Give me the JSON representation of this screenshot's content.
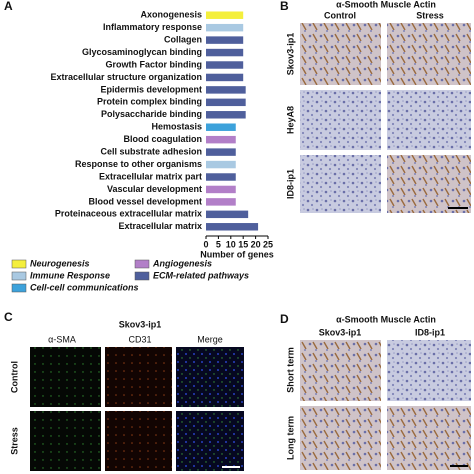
{
  "chart_data": {
    "type": "hbar",
    "panel_label": "A",
    "xlabel": "Number of genes",
    "categories": [
      "Axonogenesis",
      "Inflammatory response",
      "Collagen",
      "Glycosaminoglycan binding",
      "Growth Factor binding",
      "Extracellular structure organization",
      "Epidermis development",
      "Protein complex binding",
      "Polysaccharide binding",
      "Hemostasis",
      "Blood coagulation",
      "Cell substrate adhesion",
      "Response to other organisms",
      "Extracellular matrix part",
      "Vascular development",
      "Blood vessel development",
      "Proteinaceous extracellular matrix",
      "Extracellular matrix"
    ],
    "series": [
      {
        "name": "Neurogenesis",
        "color": "#f4ef3c",
        "values": [
          15,
          null,
          null,
          null,
          null,
          null,
          null,
          null,
          null,
          null,
          null,
          null,
          null,
          null,
          null,
          null,
          null,
          null
        ]
      },
      {
        "name": "Angiogenesis",
        "color": "#b27fc8",
        "values": [
          null,
          null,
          null,
          null,
          null,
          null,
          null,
          null,
          null,
          null,
          12,
          null,
          null,
          null,
          12,
          12,
          null,
          null
        ]
      },
      {
        "name": "Immune Response",
        "color": "#a9c9e2",
        "values": [
          null,
          15,
          null,
          null,
          null,
          null,
          null,
          null,
          null,
          null,
          null,
          null,
          12,
          null,
          null,
          null,
          null,
          null
        ]
      },
      {
        "name": "ECM-related pathways",
        "color": "#4f5f9c",
        "values": [
          null,
          null,
          15,
          15,
          15,
          15,
          16,
          16,
          16,
          null,
          null,
          12,
          null,
          12,
          null,
          null,
          17,
          21
        ]
      },
      {
        "name": "Cell-cell communications",
        "color": "#3da2db",
        "values": [
          null,
          null,
          null,
          null,
          null,
          null,
          null,
          null,
          null,
          12,
          null,
          null,
          null,
          null,
          null,
          null,
          null,
          null
        ]
      }
    ],
    "xlim": [
      0,
      25
    ],
    "xticks": [
      0,
      5,
      10,
      15,
      20,
      25
    ]
  },
  "panel_b": {
    "label": "B",
    "title": "α-Smooth Muscle Actin",
    "columns": [
      "Control",
      "Stress"
    ],
    "rows": [
      "Skov3-ip1",
      "HeyA8",
      "ID8-ip1"
    ]
  },
  "panel_c": {
    "label": "C",
    "title": "Skov3-ip1",
    "columns": [
      "α-SMA",
      "CD31",
      "Merge"
    ],
    "rows": [
      "Control",
      "Stress"
    ]
  },
  "panel_d": {
    "label": "D",
    "title": "α-Smooth Muscle Actin",
    "columns": [
      "Skov3-ip1",
      "ID8-ip1"
    ],
    "rows": [
      "Short term",
      "Long term"
    ]
  }
}
